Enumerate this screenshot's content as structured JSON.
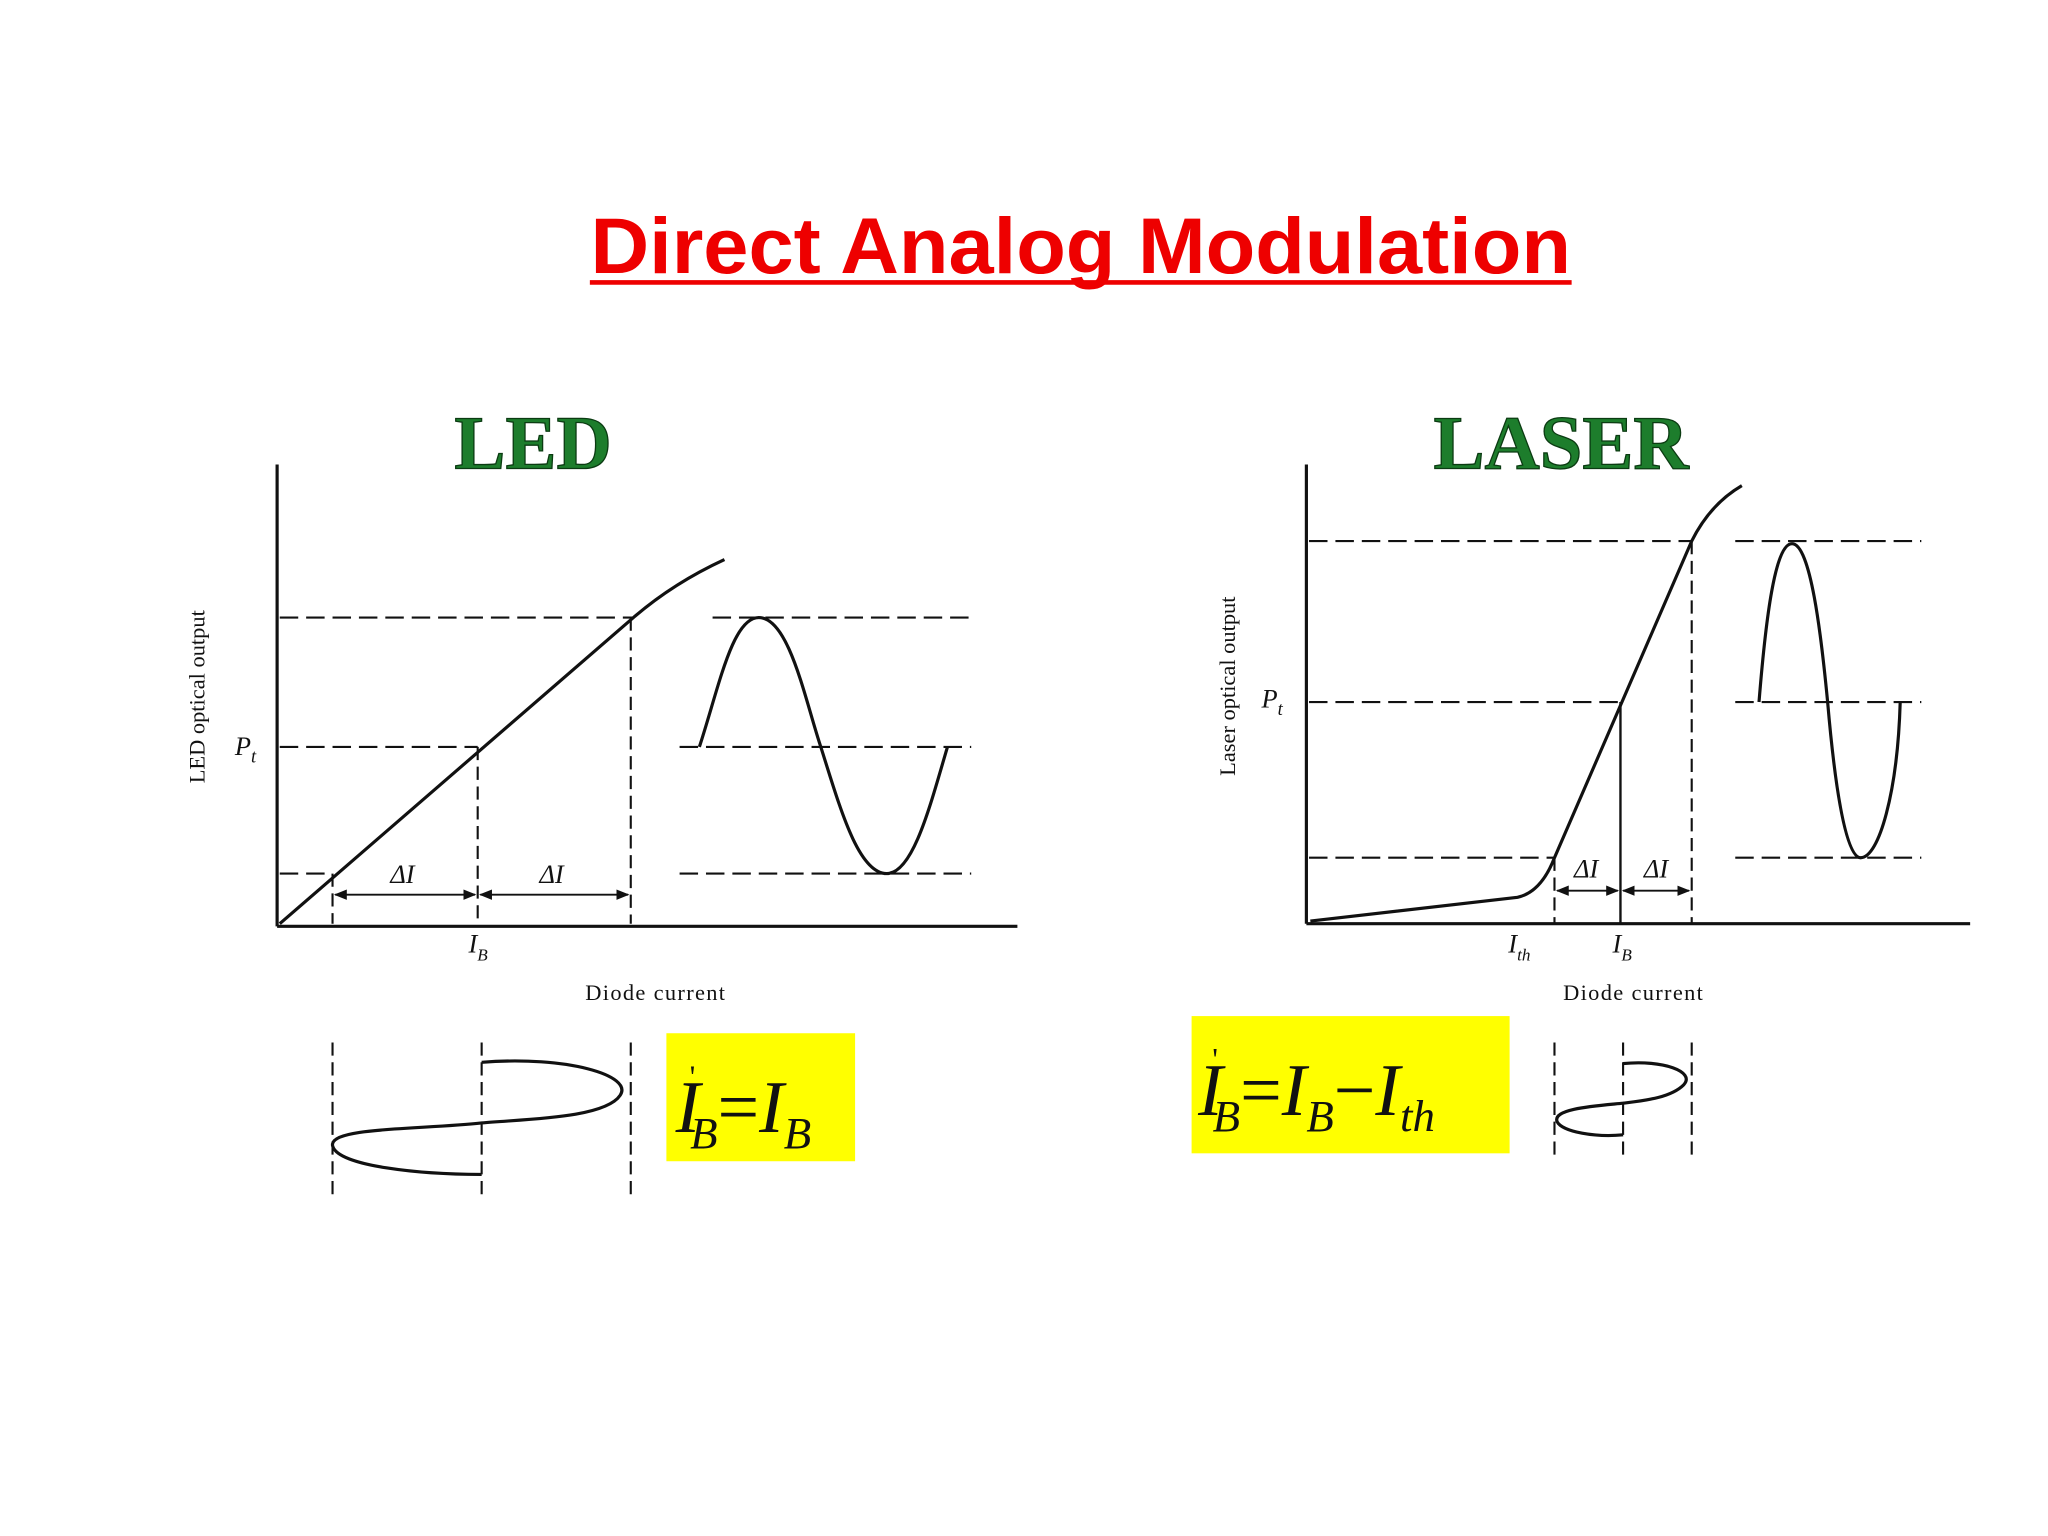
{
  "title": "Direct Analog Modulation",
  "panels": [
    {
      "heading": "LED",
      "y_axis_label": "LED optical output",
      "x_axis_label": "Diode current",
      "power_label": {
        "symbol": "P",
        "subscript": "t"
      },
      "delta_labels": [
        "ΔI",
        "ΔI"
      ],
      "current_labels": [
        {
          "symbol": "I",
          "subscript": "B"
        }
      ],
      "equation": [
        {
          "symbol": "I",
          "prime": "'",
          "subscript": "B"
        },
        {
          "operator": "="
        },
        {
          "symbol": "I",
          "subscript": "B"
        }
      ]
    },
    {
      "heading": "LASER",
      "y_axis_label": "Laser optical output",
      "x_axis_label": "Diode current",
      "power_label": {
        "symbol": "P",
        "subscript": "t"
      },
      "delta_labels": [
        "ΔI",
        "ΔI"
      ],
      "current_labels": [
        {
          "symbol": "I",
          "subscript": "th"
        },
        {
          "symbol": "I",
          "subscript": "B"
        }
      ],
      "equation": [
        {
          "symbol": "I",
          "prime": "'",
          "subscript": "B"
        },
        {
          "operator": "="
        },
        {
          "symbol": "I",
          "subscript": "B"
        },
        {
          "operator": "−"
        },
        {
          "symbol": "I",
          "subscript": "th"
        }
      ]
    }
  ]
}
